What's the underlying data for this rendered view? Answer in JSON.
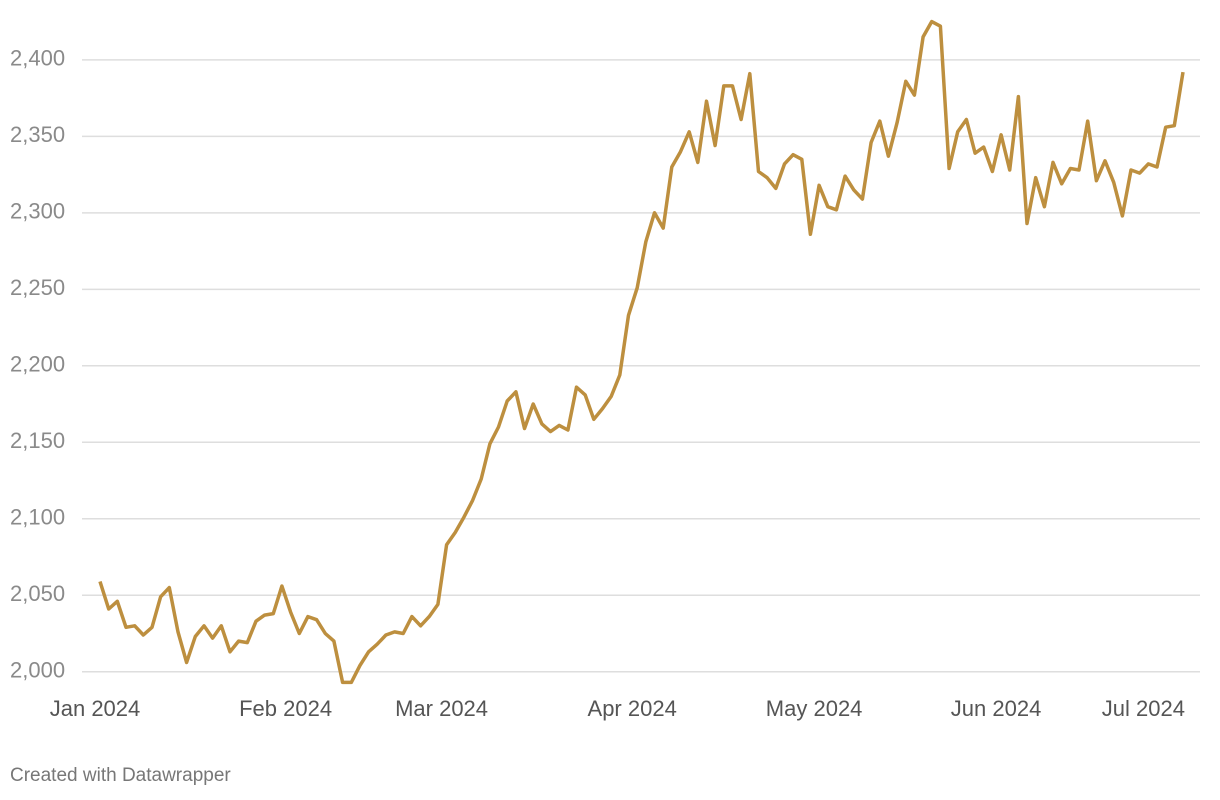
{
  "chart_data": {
    "type": "line",
    "categories": [
      "Jan 2024",
      null,
      null,
      null,
      null,
      null,
      null,
      null,
      null,
      null,
      null,
      null,
      null,
      null,
      null,
      null,
      null,
      null,
      null,
      null,
      null,
      null,
      "Feb 2024",
      null,
      null,
      null,
      null,
      null,
      null,
      null,
      null,
      null,
      null,
      null,
      null,
      null,
      null,
      null,
      null,
      null,
      "Mar 2024",
      null,
      null,
      null,
      null,
      null,
      null,
      null,
      null,
      null,
      null,
      null,
      null,
      null,
      null,
      null,
      null,
      null,
      null,
      null,
      null,
      null,
      "Apr 2024",
      null,
      null,
      null,
      null,
      null,
      null,
      null,
      null,
      null,
      null,
      null,
      null,
      null,
      null,
      null,
      null,
      null,
      null,
      null,
      null,
      "May 2024",
      null,
      null,
      null,
      null,
      null,
      null,
      null,
      null,
      null,
      null,
      null,
      null,
      null,
      null,
      null,
      null,
      null,
      null,
      null,
      null,
      "Jun 2024",
      null,
      null,
      null,
      null,
      null,
      null,
      null,
      null,
      null,
      null,
      null,
      null,
      null,
      null,
      null,
      null,
      "Jul 2024",
      null,
      null,
      null,
      null
    ],
    "values": [
      2059,
      2041,
      2046,
      2029,
      2030,
      2024,
      2029,
      2049,
      2055,
      2026,
      2006,
      2023,
      2030,
      2022,
      2030,
      2013,
      2020,
      2019,
      2033,
      2037,
      2038,
      2056,
      2039,
      2025,
      2036,
      2034,
      2025,
      2020,
      1993,
      1993,
      2004,
      2013,
      2018,
      2024,
      2026,
      2025,
      2036,
      2030,
      2036,
      2044,
      2083,
      2091,
      2101,
      2112,
      2126,
      2149,
      2160,
      2177,
      2183,
      2159,
      2175,
      2162,
      2157,
      2161,
      2158,
      2186,
      2181,
      2165,
      2172,
      2180,
      2194,
      2233,
      2251,
      2281,
      2300,
      2290,
      2330,
      2340,
      2353,
      2333,
      2373,
      2344,
      2383,
      2383,
      2361,
      2391,
      2327,
      2323,
      2316,
      2332,
      2338,
      2335,
      2286,
      2318,
      2304,
      2302,
      2324,
      2315,
      2309,
      2346,
      2360,
      2337,
      2359,
      2386,
      2377,
      2415,
      2425,
      2422,
      2329,
      2353,
      2361,
      2339,
      2343,
      2327,
      2351,
      2328,
      2376,
      2293,
      2323,
      2304,
      2333,
      2319,
      2329,
      2328,
      2360,
      2321,
      2334,
      2320,
      2298,
      2328,
      2326,
      2332,
      2330,
      2356,
      2357,
      2392
    ],
    "color": "#bd8f3f",
    "ylim": [
      1990,
      2430
    ],
    "yticks": [
      {
        "value": 2000,
        "label": "2,000"
      },
      {
        "value": 2050,
        "label": "2,050"
      },
      {
        "value": 2100,
        "label": "2,100"
      },
      {
        "value": 2150,
        "label": "2,150"
      },
      {
        "value": 2200,
        "label": "2,200"
      },
      {
        "value": 2250,
        "label": "2,250"
      },
      {
        "value": 2300,
        "label": "2,300"
      },
      {
        "value": 2350,
        "label": "2,350"
      },
      {
        "value": 2400,
        "label": "2,400"
      }
    ],
    "grid": true,
    "footer": "Created with Datawrapper"
  }
}
